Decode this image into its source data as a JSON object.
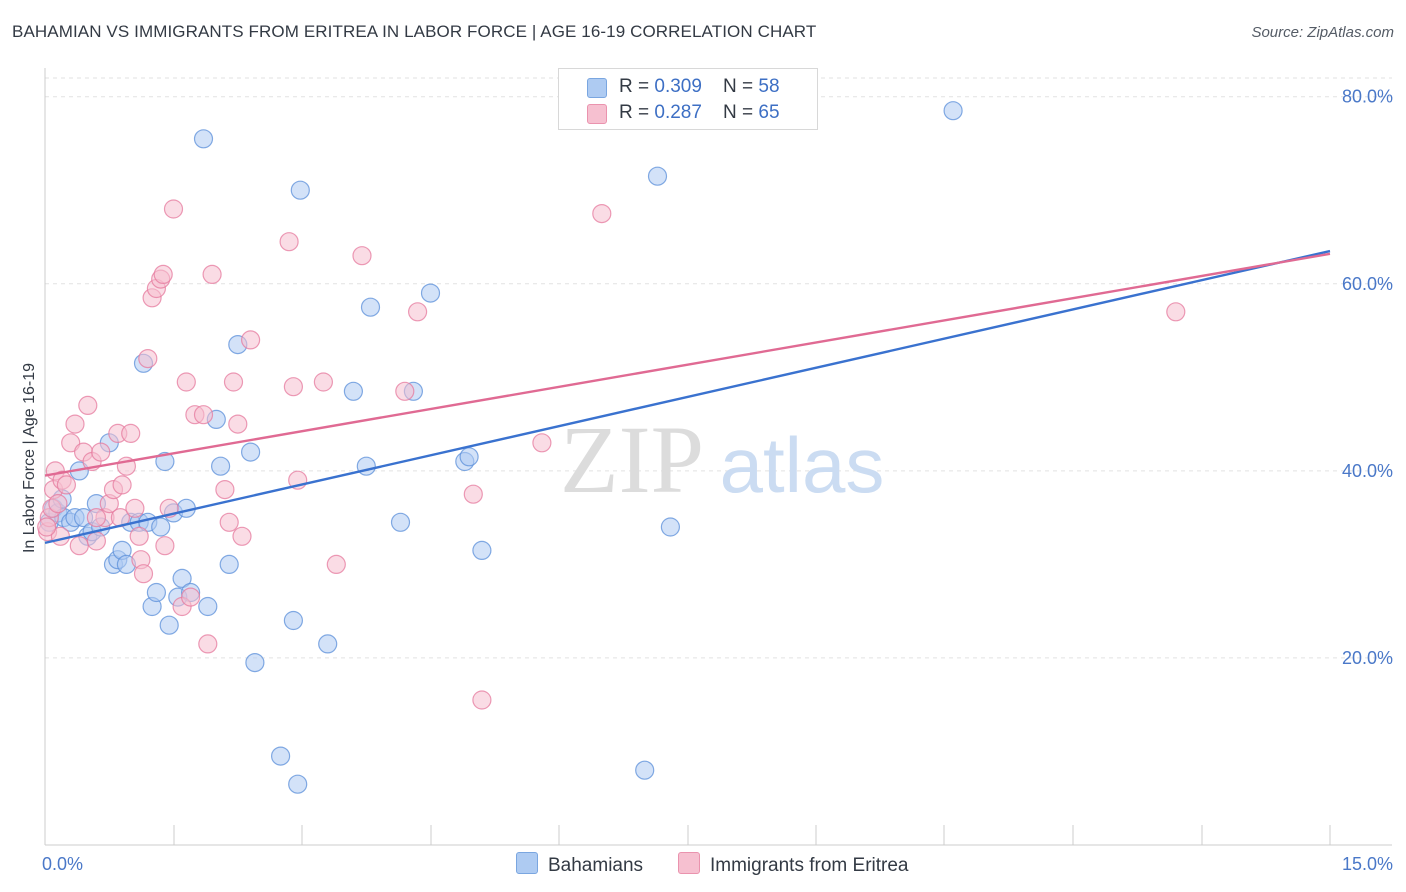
{
  "header": {
    "title": "BAHAMIAN VS IMMIGRANTS FROM ERITREA IN LABOR FORCE | AGE 16-19 CORRELATION CHART",
    "source": "Source: ZipAtlas.com"
  },
  "watermark": {
    "zip": "ZIP",
    "atlas": "atlas"
  },
  "stats_legend": {
    "rows": [
      {
        "r_label": "R = ",
        "r_value": "0.309",
        "n_label": "N = ",
        "n_value": "58",
        "color": "#aecbf2"
      },
      {
        "r_label": "R = ",
        "r_value": "0.287",
        "n_label": "N = ",
        "n_value": "65",
        "color": "#f6c0d0"
      }
    ]
  },
  "bottom_legend": [
    {
      "label": "Bahamians",
      "color": "#aecbf2"
    },
    {
      "label": "Immigrants from Eritrea",
      "color": "#f6c0d0"
    }
  ],
  "chart_data": {
    "type": "scatter",
    "title": "BAHAMIAN VS IMMIGRANTS FROM ERITREA IN LABOR FORCE | AGE 16-19 CORRELATION CHART",
    "xlabel": "",
    "ylabel": "In Labor Force | Age 16-19",
    "xlim": [
      0,
      15
    ],
    "ylim": [
      0,
      82
    ],
    "x_tick_labels": [
      "0.0%",
      "15.0%"
    ],
    "y_ticks": [
      20,
      40,
      60,
      80
    ],
    "y_tick_labels": [
      "20.0%",
      "40.0%",
      "60.0%",
      "80.0%"
    ],
    "grid": true,
    "legend_position": "top-center",
    "series": [
      {
        "name": "Bahamians",
        "color": "#5b8fd9",
        "fill": "#aecbf2",
        "trend": {
          "x": [
            0,
            15
          ],
          "y": [
            32.3,
            63.5
          ]
        },
        "points": [
          [
            0.05,
            34.5
          ],
          [
            0.1,
            36.0
          ],
          [
            0.15,
            35.5
          ],
          [
            0.2,
            37.0
          ],
          [
            0.22,
            35.0
          ],
          [
            0.3,
            34.5
          ],
          [
            0.35,
            35.0
          ],
          [
            0.4,
            40.0
          ],
          [
            0.45,
            35.0
          ],
          [
            0.5,
            33.0
          ],
          [
            0.55,
            33.5
          ],
          [
            0.6,
            36.5
          ],
          [
            0.65,
            34.0
          ],
          [
            0.75,
            43.0
          ],
          [
            0.8,
            30.0
          ],
          [
            0.85,
            30.5
          ],
          [
            0.9,
            31.5
          ],
          [
            0.95,
            30.0
          ],
          [
            1.0,
            34.5
          ],
          [
            1.1,
            34.5
          ],
          [
            1.15,
            51.5
          ],
          [
            1.2,
            34.5
          ],
          [
            1.25,
            25.5
          ],
          [
            1.3,
            27.0
          ],
          [
            1.35,
            34.0
          ],
          [
            1.4,
            41.0
          ],
          [
            1.45,
            23.5
          ],
          [
            1.5,
            35.5
          ],
          [
            1.55,
            26.5
          ],
          [
            1.6,
            28.5
          ],
          [
            1.65,
            36.0
          ],
          [
            1.7,
            27.0
          ],
          [
            1.9,
            25.5
          ],
          [
            1.85,
            75.5
          ],
          [
            2.0,
            45.5
          ],
          [
            2.05,
            40.5
          ],
          [
            2.15,
            30.0
          ],
          [
            2.25,
            53.5
          ],
          [
            2.4,
            42.0
          ],
          [
            2.45,
            19.5
          ],
          [
            2.75,
            9.5
          ],
          [
            2.9,
            24.0
          ],
          [
            2.95,
            6.5
          ],
          [
            2.98,
            70.0
          ],
          [
            3.3,
            21.5
          ],
          [
            3.6,
            48.5
          ],
          [
            3.75,
            40.5
          ],
          [
            3.8,
            57.5
          ],
          [
            4.15,
            34.5
          ],
          [
            4.3,
            48.5
          ],
          [
            4.5,
            59.0
          ],
          [
            4.9,
            41.0
          ],
          [
            4.95,
            41.5
          ],
          [
            5.1,
            31.5
          ],
          [
            7.0,
            8.0
          ],
          [
            7.15,
            71.5
          ],
          [
            7.3,
            34.0
          ],
          [
            10.6,
            78.5
          ]
        ]
      },
      {
        "name": "Immigrants from Eritrea",
        "color": "#e57a9e",
        "fill": "#f6c0d0",
        "trend": {
          "x": [
            0,
            15
          ],
          "y": [
            39.5,
            63.2
          ]
        },
        "points": [
          [
            0.03,
            33.5
          ],
          [
            0.05,
            35.0
          ],
          [
            0.08,
            36.0
          ],
          [
            0.1,
            38.0
          ],
          [
            0.12,
            40.0
          ],
          [
            0.15,
            36.5
          ],
          [
            0.18,
            33.0
          ],
          [
            0.2,
            39.0
          ],
          [
            0.25,
            38.5
          ],
          [
            0.3,
            43.0
          ],
          [
            0.35,
            45.0
          ],
          [
            0.4,
            32.0
          ],
          [
            0.45,
            42.0
          ],
          [
            0.5,
            47.0
          ],
          [
            0.55,
            41.0
          ],
          [
            0.6,
            32.5
          ],
          [
            0.65,
            42.0
          ],
          [
            0.7,
            35.0
          ],
          [
            0.75,
            36.5
          ],
          [
            0.8,
            38.0
          ],
          [
            0.85,
            44.0
          ],
          [
            0.88,
            35.0
          ],
          [
            0.9,
            38.5
          ],
          [
            0.95,
            40.5
          ],
          [
            1.0,
            44.0
          ],
          [
            1.05,
            36.0
          ],
          [
            1.1,
            33.0
          ],
          [
            1.12,
            30.5
          ],
          [
            1.15,
            29.0
          ],
          [
            1.2,
            52.0
          ],
          [
            1.25,
            58.5
          ],
          [
            1.3,
            59.5
          ],
          [
            1.35,
            60.5
          ],
          [
            1.38,
            61.0
          ],
          [
            1.4,
            32.0
          ],
          [
            1.45,
            36.0
          ],
          [
            1.5,
            68.0
          ],
          [
            1.6,
            25.5
          ],
          [
            1.65,
            49.5
          ],
          [
            1.7,
            26.5
          ],
          [
            1.75,
            46.0
          ],
          [
            1.85,
            46.0
          ],
          [
            1.9,
            21.5
          ],
          [
            1.95,
            61.0
          ],
          [
            2.1,
            38.0
          ],
          [
            2.15,
            34.5
          ],
          [
            2.2,
            49.5
          ],
          [
            2.25,
            45.0
          ],
          [
            2.3,
            33.0
          ],
          [
            2.4,
            54.0
          ],
          [
            2.85,
            64.5
          ],
          [
            2.9,
            49.0
          ],
          [
            2.95,
            39.0
          ],
          [
            3.25,
            49.5
          ],
          [
            3.4,
            30.0
          ],
          [
            3.7,
            63.0
          ],
          [
            4.2,
            48.5
          ],
          [
            4.35,
            57.0
          ],
          [
            5.0,
            37.5
          ],
          [
            5.1,
            15.5
          ],
          [
            5.8,
            43.0
          ],
          [
            6.5,
            67.5
          ],
          [
            13.2,
            57.0
          ],
          [
            0.02,
            34.0
          ],
          [
            0.6,
            35.0
          ]
        ]
      }
    ]
  }
}
